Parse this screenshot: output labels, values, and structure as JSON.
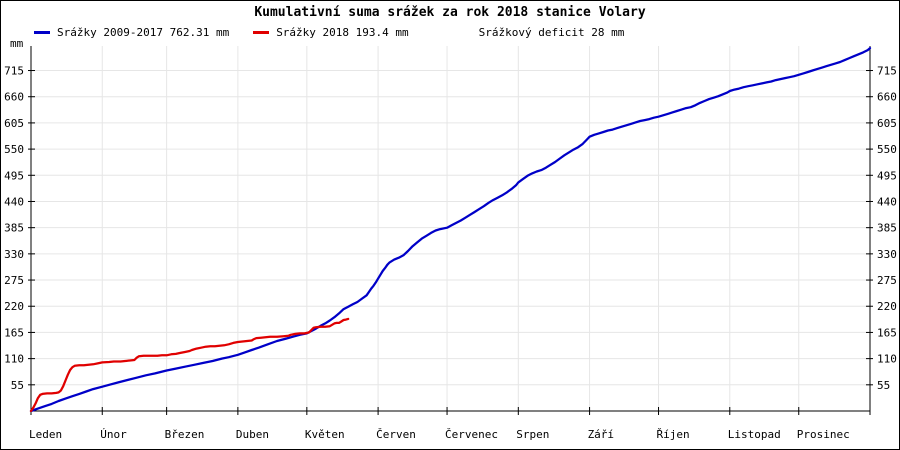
{
  "chart_data": {
    "type": "line",
    "title": "Kumulativní suma srážek za rok 2018 stanice Volary",
    "y_unit_label": "mm",
    "ylim": [
      0,
      775
    ],
    "y_ticks": [
      55,
      110,
      165,
      220,
      275,
      330,
      385,
      440,
      495,
      550,
      605,
      660,
      715
    ],
    "x_months": [
      "Leden",
      "Únor",
      "Březen",
      "Duben",
      "Květen",
      "Červen",
      "Červenec",
      "Srpen",
      "Září",
      "Říjen",
      "Listopad",
      "Prosinec"
    ],
    "month_start_days": [
      0,
      31,
      59,
      90,
      120,
      151,
      181,
      212,
      243,
      273,
      304,
      334,
      365
    ],
    "grid": true,
    "legend_position": "top-left",
    "annotation": "Srážkový deficit 28 mm",
    "deficit_mm": 28,
    "colors": {
      "grid": "#e6e6e6",
      "axis": "#000000",
      "text": "#000000",
      "background": "#ffffff"
    },
    "series": [
      {
        "name": "Srážky 2009-2017 762.31 mm",
        "color": "#0000c8",
        "total_mm": 762.31,
        "points": [
          [
            0,
            0
          ],
          [
            3,
            5
          ],
          [
            6,
            10
          ],
          [
            9,
            15
          ],
          [
            12,
            21
          ],
          [
            15,
            26
          ],
          [
            18,
            31
          ],
          [
            21,
            36
          ],
          [
            24,
            41
          ],
          [
            27,
            46
          ],
          [
            31,
            51
          ],
          [
            34,
            55
          ],
          [
            38,
            60
          ],
          [
            42,
            65
          ],
          [
            46,
            70
          ],
          [
            50,
            75
          ],
          [
            54,
            79
          ],
          [
            59,
            85
          ],
          [
            63,
            89
          ],
          [
            67,
            93
          ],
          [
            71,
            97
          ],
          [
            75,
            101
          ],
          [
            79,
            105
          ],
          [
            83,
            110
          ],
          [
            86,
            113
          ],
          [
            90,
            118
          ],
          [
            93,
            123
          ],
          [
            96,
            128
          ],
          [
            99,
            133
          ],
          [
            103,
            140
          ],
          [
            107,
            147
          ],
          [
            111,
            152
          ],
          [
            114,
            156
          ],
          [
            117,
            160
          ],
          [
            120,
            163
          ],
          [
            122,
            168
          ],
          [
            124,
            173
          ],
          [
            126,
            179
          ],
          [
            128,
            184
          ],
          [
            130,
            190
          ],
          [
            132,
            197
          ],
          [
            134,
            205
          ],
          [
            136,
            214
          ],
          [
            138,
            219
          ],
          [
            140,
            224
          ],
          [
            142,
            229
          ],
          [
            144,
            236
          ],
          [
            146,
            243
          ],
          [
            147,
            250
          ],
          [
            148,
            257
          ],
          [
            149,
            263
          ],
          [
            150,
            270
          ],
          [
            151,
            278
          ],
          [
            152,
            286
          ],
          [
            153,
            294
          ],
          [
            154,
            300
          ],
          [
            155,
            307
          ],
          [
            156,
            312
          ],
          [
            158,
            318
          ],
          [
            160,
            322
          ],
          [
            162,
            327
          ],
          [
            164,
            336
          ],
          [
            166,
            346
          ],
          [
            168,
            354
          ],
          [
            170,
            362
          ],
          [
            172,
            368
          ],
          [
            174,
            374
          ],
          [
            176,
            379
          ],
          [
            178,
            382
          ],
          [
            181,
            385
          ],
          [
            183,
            390
          ],
          [
            185,
            395
          ],
          [
            187,
            400
          ],
          [
            189,
            406
          ],
          [
            191,
            412
          ],
          [
            193,
            418
          ],
          [
            195,
            424
          ],
          [
            197,
            430
          ],
          [
            199,
            437
          ],
          [
            201,
            443
          ],
          [
            203,
            448
          ],
          [
            205,
            453
          ],
          [
            207,
            459
          ],
          [
            209,
            466
          ],
          [
            211,
            474
          ],
          [
            212,
            480
          ],
          [
            214,
            487
          ],
          [
            216,
            494
          ],
          [
            218,
            499
          ],
          [
            220,
            503
          ],
          [
            222,
            506
          ],
          [
            224,
            511
          ],
          [
            226,
            517
          ],
          [
            228,
            523
          ],
          [
            230,
            530
          ],
          [
            232,
            537
          ],
          [
            234,
            543
          ],
          [
            236,
            549
          ],
          [
            238,
            554
          ],
          [
            240,
            561
          ],
          [
            241,
            566
          ],
          [
            242,
            571
          ],
          [
            243,
            576
          ],
          [
            245,
            580
          ],
          [
            247,
            583
          ],
          [
            249,
            586
          ],
          [
            251,
            589
          ],
          [
            253,
            591
          ],
          [
            255,
            594
          ],
          [
            257,
            597
          ],
          [
            259,
            600
          ],
          [
            261,
            603
          ],
          [
            263,
            606
          ],
          [
            265,
            609
          ],
          [
            267,
            611
          ],
          [
            269,
            613
          ],
          [
            271,
            616
          ],
          [
            273,
            618
          ],
          [
            275,
            621
          ],
          [
            277,
            624
          ],
          [
            279,
            627
          ],
          [
            281,
            630
          ],
          [
            283,
            633
          ],
          [
            285,
            636
          ],
          [
            287,
            638
          ],
          [
            289,
            642
          ],
          [
            291,
            647
          ],
          [
            293,
            651
          ],
          [
            295,
            655
          ],
          [
            297,
            658
          ],
          [
            299,
            661
          ],
          [
            301,
            665
          ],
          [
            303,
            669
          ],
          [
            304,
            672
          ],
          [
            306,
            675
          ],
          [
            308,
            677
          ],
          [
            310,
            680
          ],
          [
            312,
            682
          ],
          [
            314,
            684
          ],
          [
            316,
            686
          ],
          [
            318,
            688
          ],
          [
            320,
            690
          ],
          [
            322,
            692
          ],
          [
            324,
            695
          ],
          [
            326,
            697
          ],
          [
            328,
            699
          ],
          [
            330,
            701
          ],
          [
            332,
            703
          ],
          [
            334,
            706
          ],
          [
            336,
            709
          ],
          [
            338,
            712
          ],
          [
            340,
            715
          ],
          [
            342,
            718
          ],
          [
            344,
            721
          ],
          [
            346,
            724
          ],
          [
            348,
            727
          ],
          [
            350,
            730
          ],
          [
            352,
            733
          ],
          [
            354,
            737
          ],
          [
            356,
            741
          ],
          [
            358,
            745
          ],
          [
            360,
            749
          ],
          [
            362,
            753
          ],
          [
            364,
            758
          ],
          [
            365,
            762
          ]
        ]
      },
      {
        "name": "Srážky 2018 193.4 mm",
        "color": "#e00000",
        "total_mm": 193.4,
        "points": [
          [
            0,
            0
          ],
          [
            1,
            7
          ],
          [
            2,
            16
          ],
          [
            3,
            27
          ],
          [
            4,
            34
          ],
          [
            5,
            36
          ],
          [
            7,
            37
          ],
          [
            9,
            37
          ],
          [
            11,
            38
          ],
          [
            12,
            39
          ],
          [
            13,
            43
          ],
          [
            14,
            52
          ],
          [
            15,
            64
          ],
          [
            16,
            76
          ],
          [
            17,
            86
          ],
          [
            18,
            92
          ],
          [
            19,
            95
          ],
          [
            21,
            96
          ],
          [
            23,
            96
          ],
          [
            25,
            97
          ],
          [
            27,
            98
          ],
          [
            29,
            100
          ],
          [
            31,
            102
          ],
          [
            34,
            103
          ],
          [
            36,
            104
          ],
          [
            39,
            104
          ],
          [
            41,
            105
          ],
          [
            43,
            106
          ],
          [
            45,
            107
          ],
          [
            46,
            112
          ],
          [
            47,
            115
          ],
          [
            49,
            116
          ],
          [
            52,
            116
          ],
          [
            55,
            116
          ],
          [
            57,
            117
          ],
          [
            59,
            117
          ],
          [
            61,
            119
          ],
          [
            63,
            120
          ],
          [
            65,
            122
          ],
          [
            67,
            124
          ],
          [
            69,
            126
          ],
          [
            70,
            128
          ],
          [
            72,
            131
          ],
          [
            74,
            133
          ],
          [
            76,
            135
          ],
          [
            78,
            136
          ],
          [
            80,
            136
          ],
          [
            82,
            137
          ],
          [
            84,
            138
          ],
          [
            86,
            140
          ],
          [
            88,
            143
          ],
          [
            90,
            145
          ],
          [
            92,
            146
          ],
          [
            94,
            147
          ],
          [
            96,
            148
          ],
          [
            97,
            151
          ],
          [
            98,
            153
          ],
          [
            100,
            154
          ],
          [
            102,
            155
          ],
          [
            104,
            156
          ],
          [
            107,
            156
          ],
          [
            110,
            157
          ],
          [
            112,
            158
          ],
          [
            113,
            160
          ],
          [
            115,
            162
          ],
          [
            117,
            163
          ],
          [
            119,
            163
          ],
          [
            121,
            165
          ],
          [
            122,
            170
          ],
          [
            123,
            175
          ],
          [
            124,
            176
          ],
          [
            126,
            177
          ],
          [
            128,
            177
          ],
          [
            130,
            178
          ],
          [
            131,
            181
          ],
          [
            132,
            184
          ],
          [
            133,
            185
          ],
          [
            134,
            185
          ],
          [
            135,
            188
          ],
          [
            136,
            191
          ],
          [
            137,
            192
          ],
          [
            138,
            193.4
          ]
        ]
      }
    ]
  }
}
